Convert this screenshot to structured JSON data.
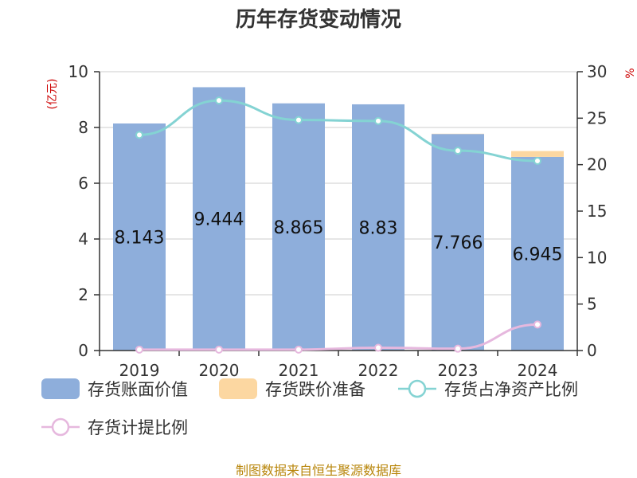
{
  "title": "历年存货变动情况",
  "source": "制图数据来自恒生聚源数据库",
  "left_unit": "(亿元)",
  "right_unit": "%",
  "colors": {
    "book_value": "#8eaedb",
    "impairment": "#fcd7a1",
    "net_asset_ratio": "#84d3d3",
    "provision_ratio": "#e6b8de"
  },
  "chart_data": {
    "type": "bar",
    "title": "历年存货变动情况",
    "categories": [
      "2019",
      "2020",
      "2021",
      "2022",
      "2023",
      "2024"
    ],
    "ylabel": "(亿元)",
    "ylim": [
      0,
      10
    ],
    "yticks": [
      0,
      2,
      4,
      6,
      8,
      10
    ],
    "y2label": "%",
    "y2lim": [
      0,
      30
    ],
    "y2ticks": [
      0,
      5,
      10,
      15,
      20,
      25,
      30
    ],
    "grid": true,
    "legend_position": "bottom",
    "series": [
      {
        "name": "存货账面价值",
        "type": "bar",
        "axis": "left",
        "stack": "inv",
        "values": [
          8.143,
          9.444,
          8.865,
          8.83,
          7.766,
          6.945
        ],
        "labels": [
          "8.143",
          "9.444",
          "8.865",
          "8.83",
          "7.766",
          "6.945"
        ]
      },
      {
        "name": "存货跌价准备",
        "type": "bar",
        "axis": "left",
        "stack": "inv",
        "values": [
          0,
          0,
          0,
          0,
          0.01,
          0.21
        ]
      },
      {
        "name": "存货占净资产比例",
        "type": "line",
        "axis": "right",
        "values": [
          23.2,
          26.9,
          24.8,
          24.7,
          21.5,
          20.4
        ]
      },
      {
        "name": "存货计提比例",
        "type": "line",
        "axis": "right",
        "values": [
          0.1,
          0.1,
          0.1,
          0.3,
          0.2,
          2.8
        ]
      }
    ]
  }
}
